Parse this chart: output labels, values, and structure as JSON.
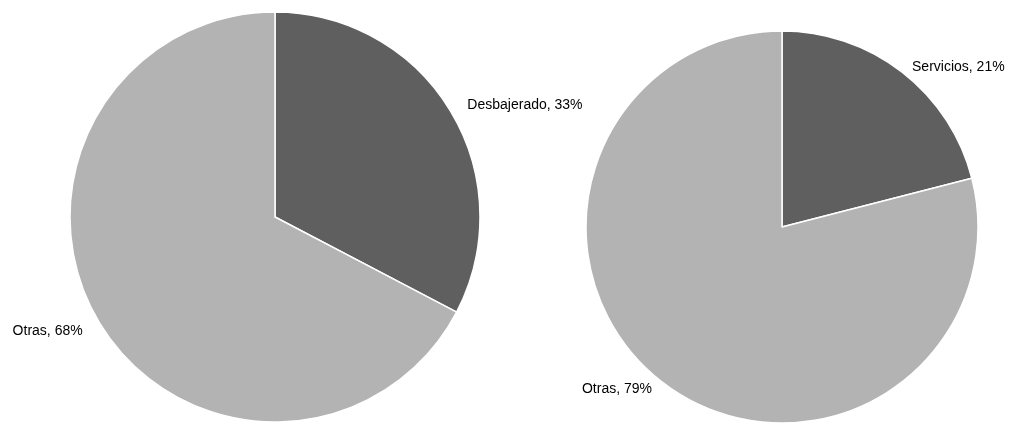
{
  "chart_data": [
    {
      "type": "pie",
      "categories": [
        "Desbajerado",
        "Otras"
      ],
      "values": [
        33,
        68
      ],
      "colors": [
        "#5f5f5f",
        "#b3b3b3"
      ],
      "value_labels": [
        "33%",
        "68%"
      ]
    },
    {
      "type": "pie",
      "categories": [
        "Servicios",
        "Otras"
      ],
      "values": [
        21,
        79
      ],
      "colors": [
        "#5f5f5f",
        "#b3b3b3"
      ],
      "value_labels": [
        "21%",
        "79%"
      ]
    }
  ]
}
